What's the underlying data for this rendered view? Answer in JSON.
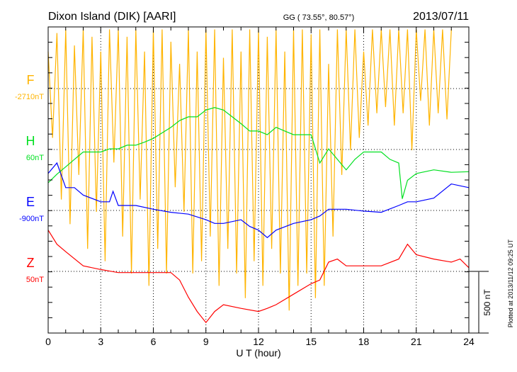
{
  "header": {
    "station": "Dixon Island (DIK)  [AARI]",
    "coords": "GG ( 73.55°,  80.57°)",
    "date": "2013/07/11"
  },
  "footer": {
    "plotted": "Plotted at 2013/11/12 09:25 UT",
    "scale_label": "500 nT"
  },
  "chart_data": {
    "type": "line",
    "xlabel": "U T (hour)",
    "xlim": [
      0,
      24
    ],
    "xticks": [
      "0",
      "3",
      "6",
      "9",
      "12",
      "15",
      "18",
      "21",
      "24"
    ],
    "scale_nT": 500,
    "grid": true,
    "colors": {
      "F": "#ffb400",
      "H": "#00e020",
      "E": "#0000ff",
      "Z": "#ff0000"
    },
    "series": [
      {
        "name": "F",
        "label": "F",
        "baseline": "-2710nT",
        "x_step": 0.25,
        "values": [
          300,
          -400,
          450,
          -900,
          480,
          -1100,
          350,
          -700,
          480,
          -1300,
          420,
          -1000,
          300,
          -1400,
          480,
          -600,
          480,
          -1200,
          420,
          -1500,
          480,
          -900,
          300,
          -1600,
          480,
          -1300,
          480,
          -1500,
          380,
          -800,
          200,
          -1000,
          480,
          -1500,
          300,
          -1400,
          480,
          -1200,
          480,
          -1600,
          250,
          -1300,
          480,
          -1500,
          300,
          -1700,
          480,
          -1400,
          480,
          -1600,
          420,
          -1300,
          480,
          -1500,
          300,
          -1800,
          480,
          -1600,
          480,
          -1500,
          440,
          -1700,
          480,
          -1600,
          200,
          -1200,
          480,
          -700,
          480,
          -500,
          480,
          -400,
          300,
          -300,
          480,
          -200,
          480,
          -150,
          480,
          -300,
          480,
          -200,
          480,
          -500,
          480,
          -100,
          480,
          -300,
          480,
          -200,
          480,
          -250,
          480
        ]
      },
      {
        "name": "H",
        "label": "H",
        "baseline": "60nT",
        "x": [
          0,
          0.5,
          1,
          1.5,
          2,
          3,
          3.5,
          4,
          4.5,
          5,
          5.5,
          6,
          7,
          7.5,
          8,
          8.5,
          9,
          9.5,
          10,
          10.5,
          11,
          11.5,
          12,
          12.5,
          13,
          13.5,
          14,
          15,
          15.5,
          16,
          16.5,
          17,
          17.5,
          18,
          19,
          19.5,
          20,
          20.2,
          20.5,
          21,
          22,
          23,
          24
        ],
        "values": [
          -270,
          -200,
          -140,
          -80,
          -20,
          -20,
          5,
          5,
          35,
          35,
          60,
          90,
          180,
          235,
          265,
          265,
          320,
          340,
          320,
          265,
          210,
          150,
          150,
          120,
          180,
          150,
          120,
          120,
          -110,
          5,
          -80,
          -165,
          -80,
          -20,
          -20,
          -80,
          -110,
          -400,
          -250,
          -195,
          -165,
          -185,
          -180
        ]
      },
      {
        "name": "E",
        "label": "E",
        "baseline": "-900nT",
        "x": [
          0,
          0.5,
          1,
          1.5,
          2,
          3,
          3.5,
          3.7,
          4,
          5,
          6,
          7,
          8,
          9,
          9.5,
          10,
          11,
          11.5,
          12,
          12.5,
          13,
          14,
          15,
          15.5,
          16,
          17,
          18,
          19,
          20,
          20.5,
          21,
          22,
          23,
          24
        ],
        "values": [
          300,
          385,
          185,
          185,
          125,
          70,
          70,
          155,
          40,
          40,
          10,
          -15,
          -30,
          -75,
          -105,
          -105,
          -75,
          -130,
          -160,
          -220,
          -160,
          -105,
          -75,
          -45,
          10,
          10,
          -5,
          -15,
          40,
          70,
          70,
          100,
          215,
          185
        ]
      },
      {
        "name": "Z",
        "label": "Z",
        "baseline": "50nT",
        "x": [
          0,
          0.5,
          1,
          2,
          3,
          4,
          5,
          6,
          7,
          7.5,
          8,
          8.5,
          9,
          9.5,
          10,
          11,
          12,
          12.5,
          13,
          14,
          15,
          15.5,
          16,
          16.5,
          17,
          18,
          19,
          20,
          20.5,
          21,
          22,
          23,
          23.5,
          24
        ],
        "values": [
          335,
          220,
          160,
          45,
          15,
          -10,
          -10,
          -10,
          -10,
          -70,
          -210,
          -325,
          -415,
          -325,
          -270,
          -300,
          -325,
          -300,
          -270,
          -185,
          -100,
          -70,
          75,
          100,
          45,
          45,
          45,
          100,
          220,
          135,
          100,
          75,
          100,
          30
        ]
      }
    ]
  }
}
